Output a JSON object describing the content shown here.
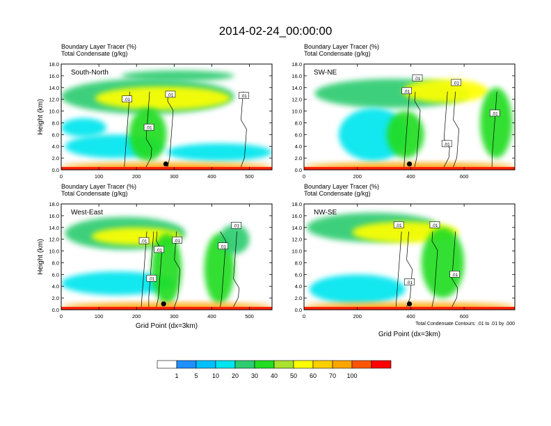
{
  "title": "2014-02-24_00:00:00",
  "chart_data": [
    {
      "type": "heatmap",
      "panel_label": "South-North",
      "variable_line_1": "Boundary Layer Tracer   (%)",
      "variable_line_2": "Total Condensate   (g/kg)",
      "ylabel": "Height (km)",
      "xlabel": "",
      "xlim": [
        0,
        560
      ],
      "ylim": [
        0,
        18
      ],
      "x_ticks": [
        "0",
        "100",
        "200",
        "300",
        "400",
        "500"
      ],
      "x_tick_values": [
        0,
        100,
        200,
        300,
        400,
        500
      ],
      "y_ticks": [
        "0.0",
        "2.0",
        "4.0",
        "6.0",
        "8.0",
        "10.0",
        "12.0",
        "14.0",
        "16.0",
        "18.0"
      ],
      "contour_labels": [
        ".01",
        ".01",
        ".01",
        ".01"
      ],
      "contour_label_positions": [
        [
          175,
          12.0
        ],
        [
          290,
          12.8
        ],
        [
          485,
          12.6
        ],
        [
          233,
          7.2
        ]
      ],
      "marker_position": [
        278,
        1.0
      ],
      "tracer_blobs": [
        {
          "x": 230,
          "y": 12.5,
          "rx": 230,
          "ry": 3.0,
          "level": 20
        },
        {
          "x": 270,
          "y": 12.2,
          "rx": 180,
          "ry": 2.0,
          "level": 50
        },
        {
          "x": 310,
          "y": 16.0,
          "rx": 150,
          "ry": 0.9,
          "level": 20
        },
        {
          "x": 60,
          "y": 7.2,
          "rx": 60,
          "ry": 1.6,
          "level": 10
        },
        {
          "x": 140,
          "y": 4.0,
          "rx": 130,
          "ry": 2.0,
          "level": 10
        },
        {
          "x": 230,
          "y": 6.0,
          "rx": 50,
          "ry": 4.5,
          "level": 30
        },
        {
          "x": 420,
          "y": 3.0,
          "rx": 140,
          "ry": 1.5,
          "level": 10
        },
        {
          "x": 280,
          "y": 0.6,
          "rx": 280,
          "ry": 0.6,
          "level": 70
        }
      ]
    },
    {
      "type": "heatmap",
      "panel_label": "SW-NE",
      "variable_line_1": "Boundary Layer Tracer   (%)",
      "variable_line_2": "Total Condensate   (g/kg)",
      "ylabel": "",
      "xlabel": "",
      "xlim": [
        0,
        790
      ],
      "ylim": [
        0,
        18
      ],
      "x_ticks": [
        "0",
        "200",
        "400",
        "600"
      ],
      "x_tick_values": [
        0,
        200,
        400,
        600
      ],
      "y_ticks": [
        "0.0",
        "2.0",
        "4.0",
        "6.0",
        "8.0",
        "10.0",
        "12.0",
        "14.0",
        "16.0",
        "18.0"
      ],
      "contour_labels": [
        ".01",
        ".01",
        ".01",
        ".01",
        ".01"
      ],
      "contour_label_positions": [
        [
          385,
          13.4
        ],
        [
          425,
          15.6
        ],
        [
          570,
          14.8
        ],
        [
          535,
          4.4
        ],
        [
          715,
          9.6
        ]
      ],
      "marker_position": [
        395,
        1.0
      ],
      "tracer_blobs": [
        {
          "x": 330,
          "y": 13.0,
          "rx": 290,
          "ry": 2.5,
          "level": 20
        },
        {
          "x": 530,
          "y": 13.4,
          "rx": 160,
          "ry": 2.0,
          "level": 50
        },
        {
          "x": 260,
          "y": 6.0,
          "rx": 130,
          "ry": 4.5,
          "level": 10
        },
        {
          "x": 380,
          "y": 6.0,
          "rx": 70,
          "ry": 4.0,
          "level": 30
        },
        {
          "x": 720,
          "y": 8.0,
          "rx": 60,
          "ry": 6.0,
          "level": 30
        },
        {
          "x": 395,
          "y": 0.6,
          "rx": 395,
          "ry": 0.6,
          "level": 70
        }
      ]
    },
    {
      "type": "heatmap",
      "panel_label": "West-East",
      "variable_line_1": "Boundary Layer Tracer   (%)",
      "variable_line_2": "Total Condensate   (g/kg)",
      "ylabel": "Height (km)",
      "xlabel": "Grid Point (dx=3km)",
      "xlim": [
        0,
        560
      ],
      "ylim": [
        0,
        18
      ],
      "x_ticks": [
        "0",
        "100",
        "200",
        "300",
        "400",
        "500"
      ],
      "x_tick_values": [
        0,
        100,
        200,
        300,
        400,
        500
      ],
      "y_ticks": [
        "0.0",
        "2.0",
        "4.0",
        "6.0",
        "8.0",
        "10.0",
        "12.0",
        "14.0",
        "16.0",
        "18.0"
      ],
      "contour_labels": [
        ".01",
        ".01",
        ".01",
        ".01",
        ".01",
        ".01"
      ],
      "contour_label_positions": [
        [
          220,
          11.7
        ],
        [
          260,
          10.2
        ],
        [
          308,
          11.8
        ],
        [
          465,
          14.3
        ],
        [
          240,
          5.3
        ],
        [
          430,
          10.8
        ]
      ],
      "marker_position": [
        272,
        1.0
      ],
      "tracer_blobs": [
        {
          "x": 170,
          "y": 13.0,
          "rx": 160,
          "ry": 2.8,
          "level": 20
        },
        {
          "x": 200,
          "y": 12.5,
          "rx": 120,
          "ry": 1.5,
          "level": 50
        },
        {
          "x": 150,
          "y": 4.5,
          "rx": 150,
          "ry": 2.0,
          "level": 10
        },
        {
          "x": 280,
          "y": 7.0,
          "rx": 40,
          "ry": 6.0,
          "level": 30
        },
        {
          "x": 420,
          "y": 7.0,
          "rx": 40,
          "ry": 6.0,
          "level": 30
        },
        {
          "x": 460,
          "y": 12.0,
          "rx": 40,
          "ry": 2.5,
          "level": 20
        },
        {
          "x": 280,
          "y": 0.6,
          "rx": 280,
          "ry": 0.6,
          "level": 70
        }
      ]
    },
    {
      "type": "heatmap",
      "panel_label": "NW-SE",
      "variable_line_1": "Boundary Layer Tracer   (%)",
      "variable_line_2": "Total Condensate   (g/kg)",
      "ylabel": "",
      "xlabel": "Grid Point (dx=3km)",
      "xlim": [
        0,
        790
      ],
      "ylim": [
        0,
        18
      ],
      "x_ticks": [
        "0",
        "200",
        "400",
        "600"
      ],
      "x_tick_values": [
        0,
        200,
        400,
        600
      ],
      "y_ticks": [
        "0.0",
        "2.0",
        "4.0",
        "6.0",
        "8.0",
        "10.0",
        "12.0",
        "14.0",
        "16.0",
        "18.0"
      ],
      "contour_labels": [
        ".01",
        ".01",
        ".01",
        ".01"
      ],
      "contour_label_positions": [
        [
          355,
          14.4
        ],
        [
          490,
          14.4
        ],
        [
          395,
          4.7
        ],
        [
          565,
          6.0
        ]
      ],
      "marker_position": [
        395,
        1.0
      ],
      "tracer_blobs": [
        {
          "x": 260,
          "y": 14.0,
          "rx": 250,
          "ry": 2.5,
          "level": 20
        },
        {
          "x": 380,
          "y": 13.2,
          "rx": 200,
          "ry": 1.8,
          "level": 50
        },
        {
          "x": 520,
          "y": 8.0,
          "rx": 80,
          "ry": 6.0,
          "level": 30
        },
        {
          "x": 200,
          "y": 3.5,
          "rx": 180,
          "ry": 2.5,
          "level": 10
        },
        {
          "x": 395,
          "y": 0.6,
          "rx": 395,
          "ry": 0.6,
          "level": 70
        }
      ],
      "footnote": "Total Condensate Contours: .01 to .01 by .000"
    }
  ],
  "colorbar": {
    "levels": [
      "1",
      "5",
      "10",
      "20",
      "30",
      "40",
      "50",
      "60",
      "70",
      "100"
    ],
    "level_values": [
      1,
      5,
      10,
      20,
      30,
      40,
      50,
      60,
      70,
      100
    ],
    "colors": [
      "#ffffff",
      "#1e90ff",
      "#00bfff",
      "#00e5ee",
      "#2ecc71",
      "#22dd22",
      "#a8e22c",
      "#ffff00",
      "#ffd000",
      "#ffa500",
      "#ff5500",
      "#ff0000"
    ]
  }
}
